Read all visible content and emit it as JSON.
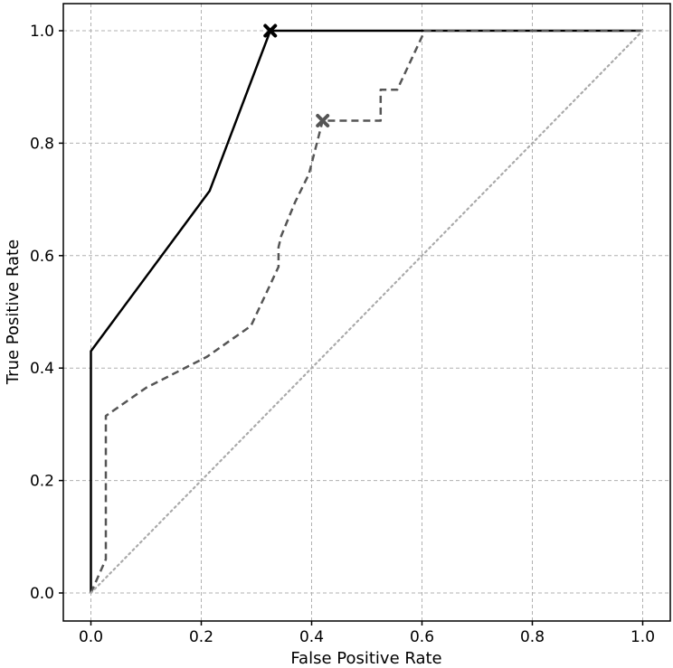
{
  "chart_data": {
    "type": "line",
    "title": "",
    "xlabel": "False Positive Rate",
    "ylabel": "True Positive Rate",
    "xlim": [
      -0.05,
      1.05
    ],
    "ylim": [
      -0.05,
      1.05
    ],
    "xticks": [
      "0.0",
      "0.2",
      "0.4",
      "0.6",
      "0.8",
      "1.0"
    ],
    "yticks": [
      "0.0",
      "0.2",
      "0.4",
      "0.6",
      "0.8",
      "1.0"
    ],
    "grid": true,
    "legend": "none",
    "series": [
      {
        "style": "solid",
        "color": "#000000",
        "x": [
          0.0,
          0.0,
          0.215,
          0.325,
          1.0
        ],
        "y": [
          0.0,
          0.43,
          0.715,
          1.0,
          1.0
        ],
        "marker": {
          "x": 0.325,
          "y": 1.0
        }
      },
      {
        "style": "dashed",
        "color": "#555555",
        "x": [
          0.0,
          0.027,
          0.027,
          0.1,
          0.21,
          0.29,
          0.34,
          0.34,
          0.345,
          0.37,
          0.395,
          0.42,
          0.525,
          0.525,
          0.555,
          0.605,
          1.0
        ],
        "y": [
          0.0,
          0.06,
          0.315,
          0.365,
          0.42,
          0.475,
          0.58,
          0.615,
          0.635,
          0.695,
          0.745,
          0.84,
          0.84,
          0.895,
          0.895,
          1.0,
          1.0
        ],
        "marker": {
          "x": 0.42,
          "y": 0.84
        }
      },
      {
        "style": "dotted",
        "color": "#aaaaaa",
        "x": [
          0.0,
          1.0
        ],
        "y": [
          0.0,
          1.0
        ]
      }
    ]
  }
}
